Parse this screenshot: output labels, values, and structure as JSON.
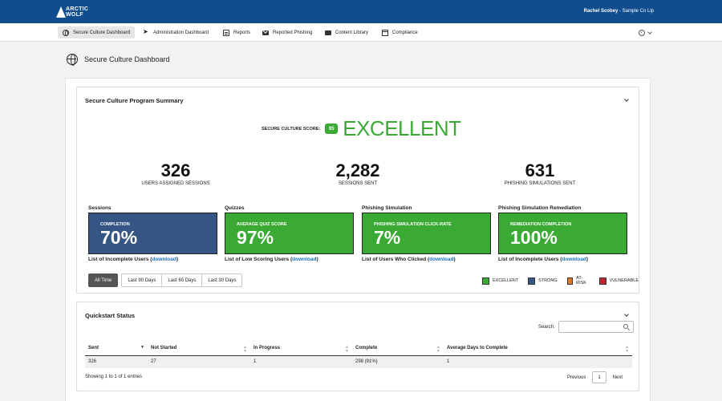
{
  "header": {
    "logo_line1": "ARCTIC",
    "logo_line2": "WOLF",
    "user_name": "Rachel Scobey",
    "separator": "-",
    "company": "Sample Co Llp"
  },
  "nav": {
    "items": [
      {
        "label": "Secure Culture Dashboard",
        "icon": "globe-icon",
        "active": true
      },
      {
        "label": "Administration Dashboard",
        "icon": "rocket-icon"
      },
      {
        "label": "Reports",
        "icon": "report-icon"
      },
      {
        "label": "Reported Phishing",
        "icon": "mail-icon"
      },
      {
        "label": "Content Library",
        "icon": "folder-icon"
      },
      {
        "label": "Compliance",
        "icon": "calendar-icon"
      }
    ]
  },
  "page": {
    "title": "Secure Culture Dashboard"
  },
  "summary": {
    "title": "Secure Culture Program Summary",
    "score_label": "SECURE CULTURE SCORE:",
    "score_value": "95",
    "score_word": "EXCELLENT",
    "stats": [
      {
        "value": "326",
        "label": "USERS ASSIGNED SESSIONS"
      },
      {
        "value": "2,282",
        "label": "SESSIONS SENT"
      },
      {
        "value": "631",
        "label": "PHISHING SIMULATIONS SENT"
      }
    ],
    "metrics": [
      {
        "heading": "Sessions",
        "caption": "COMPLETION",
        "value": "70%",
        "status": "STRONG",
        "color": "#355585",
        "link_text": "List of Incomplete Users (",
        "link_label": "download",
        "link_end": ")"
      },
      {
        "heading": "Quizzes",
        "caption": "AVERAGE QUIZ SCORE",
        "value": "97%",
        "status": "EXCELLENT",
        "color": "#3aaa35",
        "link_text": "List of Low Scoring Users (",
        "link_label": "download",
        "link_end": ")"
      },
      {
        "heading": "Phishing Simulation",
        "caption": "PHISHING SIMULATION CLICK-RATE",
        "value": "7%",
        "status": "EXCELLENT",
        "color": "#3aaa35",
        "link_text": "List of Users Who Clicked (",
        "link_label": "download",
        "link_end": ")"
      },
      {
        "heading": "Phishing Simulation Remediation",
        "caption": "REMEDIATION COMPLETION",
        "value": "100%",
        "status": "EXCELLENT",
        "color": "#3aaa35",
        "link_text": "List of Incomplete Users (",
        "link_label": "download",
        "link_end": ")"
      }
    ],
    "ranges": [
      "All Time",
      "Last 90 Days",
      "Last 60 Days",
      "Last 30 Days"
    ],
    "legend": [
      {
        "label": "EXCELLENT",
        "color": "#3aaa35"
      },
      {
        "label": "STRONG",
        "color": "#355585"
      },
      {
        "label": "AT-RISK",
        "color": "#e07a1f"
      },
      {
        "label": "VULNERABLE",
        "color": "#c0272d"
      }
    ]
  },
  "quickstart": {
    "title": "Quickstart Status",
    "search_label": "Search:",
    "search_value": "",
    "columns": [
      "Sent",
      "Not Started",
      "In Progress",
      "Complete",
      "Average Days to Complete"
    ],
    "rows": [
      [
        "326",
        "27",
        "1",
        "298  (91%)",
        "1"
      ]
    ],
    "showing": "Showing 1 to 1 of 1 entries",
    "prev": "Previous",
    "page": "1",
    "next": "Next"
  }
}
